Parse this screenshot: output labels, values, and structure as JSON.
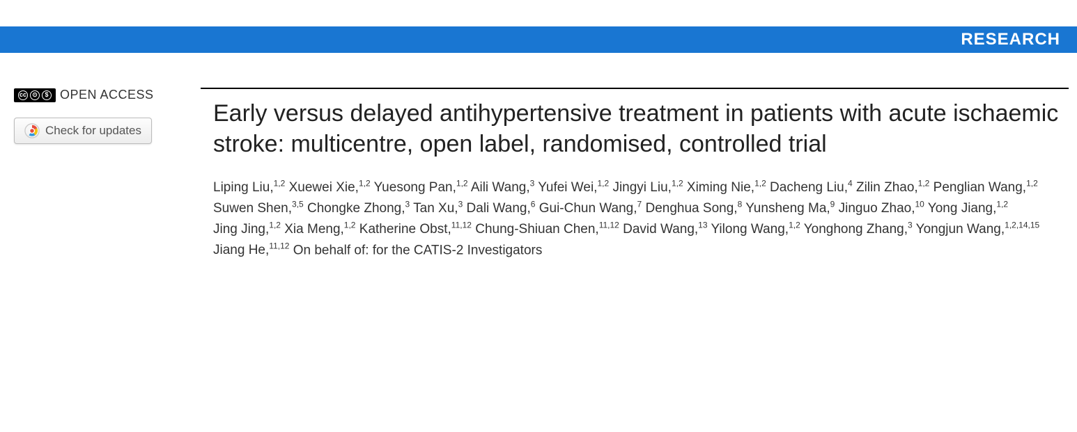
{
  "header": {
    "label": "RESEARCH",
    "background_color": "#1976d2",
    "text_color": "#ffffff"
  },
  "left_panel": {
    "open_access_label": "OPEN ACCESS",
    "cc_symbols": [
      "cc",
      "BY",
      "NC"
    ],
    "check_updates_label": "Check for updates"
  },
  "article": {
    "title": "Early versus delayed antihypertensive treatment in patients with acute ischaemic stroke: multicentre, open label, randomised, controlled trial",
    "authors": [
      {
        "name": "Liping Liu",
        "affil": "1,2"
      },
      {
        "name": "Xuewei Xie",
        "affil": "1,2"
      },
      {
        "name": "Yuesong Pan",
        "affil": "1,2"
      },
      {
        "name": "Aili Wang",
        "affil": "3"
      },
      {
        "name": "Yufei Wei",
        "affil": "1,2"
      },
      {
        "name": "Jingyi Liu",
        "affil": "1,2"
      },
      {
        "name": "Ximing Nie",
        "affil": "1,2"
      },
      {
        "name": "Dacheng Liu",
        "affil": "4"
      },
      {
        "name": "Zilin Zhao",
        "affil": "1,2"
      },
      {
        "name": "Penglian Wang",
        "affil": "1,2"
      },
      {
        "name": "Suwen Shen",
        "affil": "3,5"
      },
      {
        "name": "Chongke Zhong",
        "affil": "3"
      },
      {
        "name": "Tan Xu",
        "affil": "3"
      },
      {
        "name": "Dali Wang",
        "affil": "6"
      },
      {
        "name": "Gui-Chun Wang",
        "affil": "7"
      },
      {
        "name": "Denghua Song",
        "affil": "8"
      },
      {
        "name": "Yunsheng Ma",
        "affil": "9"
      },
      {
        "name": "Jinguo Zhao",
        "affil": "10"
      },
      {
        "name": "Yong Jiang",
        "affil": "1,2"
      },
      {
        "name": "Jing Jing",
        "affil": "1,2"
      },
      {
        "name": "Xia Meng",
        "affil": "1,2"
      },
      {
        "name": "Katherine Obst",
        "affil": "11,12"
      },
      {
        "name": "Chung-Shiuan Chen",
        "affil": "11,12"
      },
      {
        "name": "David Wang",
        "affil": "13"
      },
      {
        "name": "Yilong Wang",
        "affil": "1,2"
      },
      {
        "name": "Yonghong Zhang",
        "affil": "3"
      },
      {
        "name": "Yongjun Wang",
        "affil": "1,2,14,15"
      },
      {
        "name": "Jiang He",
        "affil": "11,12"
      }
    ],
    "behalf_text": "On behalf of: for the CATIS-2 Investigators"
  },
  "colors": {
    "header_bg": "#1976d2",
    "title_text": "#222222",
    "body_text": "#333333",
    "border_top": "#000000",
    "button_border": "#bbbbbb"
  }
}
